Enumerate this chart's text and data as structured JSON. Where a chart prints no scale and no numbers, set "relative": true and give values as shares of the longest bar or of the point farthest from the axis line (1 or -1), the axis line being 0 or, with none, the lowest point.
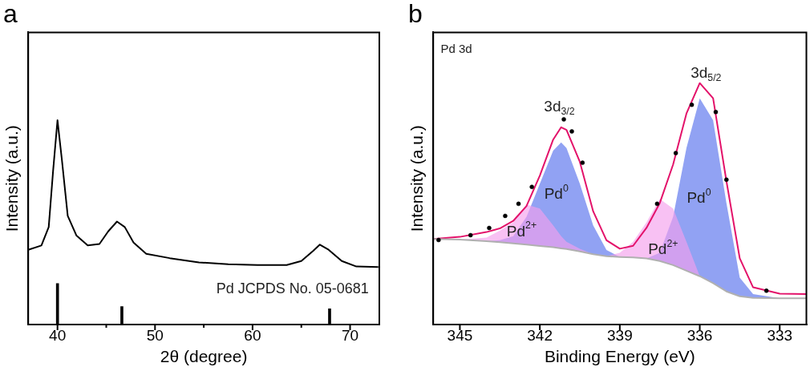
{
  "chart_data": [
    {
      "type": "line",
      "title": "a",
      "xlabel": "2θ (degree)",
      "ylabel": "Intensity (a.u.)",
      "relative": true,
      "tick_labels": "x",
      "grid": false,
      "legend": false,
      "xlim": [
        37,
        73
      ],
      "xticks": [
        40,
        {
          "value": 45,
          "label": null
        },
        50,
        {
          "value": 55,
          "label": null
        },
        60,
        {
          "value": 65,
          "label": null
        },
        70
      ],
      "annotations": [
        "Pd JCPDS No. 05-0681"
      ],
      "series": [
        {
          "color": "#000000",
          "x": [
            37.0,
            38.35,
            39.1,
            39.55,
            40.0,
            40.45,
            41.05,
            41.95,
            43.1,
            44.3,
            45.2,
            46.1,
            46.9,
            47.8,
            49.1,
            51.5,
            54.5,
            57.5,
            60.5,
            63.5,
            65.0,
            66.2,
            66.9,
            67.8,
            69.15,
            70.65,
            72.9
          ],
          "values": [
            0.366,
            0.387,
            0.477,
            0.752,
            1.0,
            0.807,
            0.532,
            0.435,
            0.387,
            0.394,
            0.456,
            0.504,
            0.477,
            0.401,
            0.346,
            0.325,
            0.304,
            0.295,
            0.291,
            0.291,
            0.311,
            0.36,
            0.391,
            0.366,
            0.311,
            0.284,
            0.281
          ]
        },
        {
          "type": "bar",
          "color": "#000000",
          "x": [
            40.0,
            46.6,
            67.9
          ],
          "values": [
            0.201,
            0.088,
            0.077
          ]
        }
      ]
    },
    {
      "type": "line",
      "title": "b",
      "xlabel": "Binding Energy (eV)",
      "ylabel": "Intensity (a.u.)",
      "relative": true,
      "tick_labels": "x",
      "grid": false,
      "legend": false,
      "xlim": [
        346,
        332
      ],
      "xticks": [
        345,
        342,
        339,
        336,
        333
      ],
      "x": [
        346,
        345,
        344,
        343.5,
        343,
        342.5,
        342,
        341.5,
        341.2,
        341,
        340.5,
        340,
        339.5,
        339,
        338.5,
        338,
        337.5,
        337,
        336.5,
        336,
        335.5,
        335,
        334.5,
        334,
        333,
        332
      ],
      "annotations": [
        "Pd 3d",
        "3d$_{3/2}$",
        "3d$_{5/2}$",
        "Pd$^{0}$",
        "Pd$^{2+}$",
        "Pd$^{0}$",
        "Pd$^{2+}$"
      ],
      "series": [
        {
          "color": "#b0b0b0",
          "values": [
            0.354,
            0.352,
            0.345,
            0.341,
            0.336,
            0.331,
            0.325,
            0.32,
            0.315,
            0.313,
            0.303,
            0.291,
            0.283,
            0.28,
            0.278,
            0.274,
            0.263,
            0.246,
            0.223,
            0.2,
            0.171,
            0.137,
            0.117,
            0.11,
            0.109,
            0.109
          ]
        },
        {
          "type": "area",
          "color": "#8a9cf2",
          "values": [
            null,
            null,
            0.345,
            0.349,
            0.366,
            0.446,
            0.583,
            0.72,
            0.754,
            0.731,
            0.583,
            0.411,
            0.309,
            0.28,
            null,
            null,
            null,
            null,
            null,
            null,
            null,
            null,
            null,
            null,
            null,
            null
          ]
        },
        {
          "type": "area",
          "color": "#8a9cf2",
          "values": [
            null,
            null,
            null,
            null,
            null,
            null,
            null,
            null,
            null,
            null,
            null,
            null,
            null,
            null,
            null,
            0.274,
            0.297,
            0.446,
            0.731,
            0.937,
            0.846,
            0.503,
            0.194,
            0.126,
            0.109,
            null
          ]
        },
        {
          "type": "area",
          "color": "#f5a0ec",
          "values": [
            null,
            0.352,
            0.36,
            0.389,
            0.423,
            0.497,
            0.48,
            0.411,
            0.366,
            0.343,
            0.314,
            0.291,
            null,
            null,
            null,
            null,
            null,
            null,
            null,
            null,
            null,
            null,
            null,
            null,
            null,
            null
          ]
        },
        {
          "type": "area",
          "color": "#f5a0ec",
          "values": [
            null,
            null,
            null,
            null,
            null,
            null,
            null,
            null,
            null,
            null,
            null,
            null,
            0.283,
            0.297,
            0.343,
            0.423,
            0.52,
            0.48,
            0.343,
            0.2,
            null,
            null,
            null,
            null,
            null,
            null
          ]
        },
        {
          "color": "#e3126a",
          "values": [
            0.354,
            0.363,
            0.383,
            0.398,
            0.429,
            0.491,
            0.617,
            0.766,
            0.817,
            0.806,
            0.674,
            0.469,
            0.349,
            0.314,
            0.326,
            0.4,
            0.503,
            0.663,
            0.874,
            1.0,
            0.937,
            0.594,
            0.274,
            0.154,
            0.128,
            0.126
          ]
        },
        {
          "type": "scatter",
          "color": "#000000",
          "marker": "circle",
          "x": [
            345.8,
            344.6,
            343.9,
            343.3,
            342.8,
            342.3,
            341.1,
            340.8,
            340.4,
            337.6,
            336.9,
            336.3,
            335.4,
            335.0,
            333.5
          ],
          "values": [
            0.35,
            0.37,
            0.4,
            0.45,
            0.5,
            0.57,
            0.85,
            0.8,
            0.67,
            0.5,
            0.71,
            0.91,
            0.88,
            0.6,
            0.14
          ]
        }
      ]
    }
  ]
}
